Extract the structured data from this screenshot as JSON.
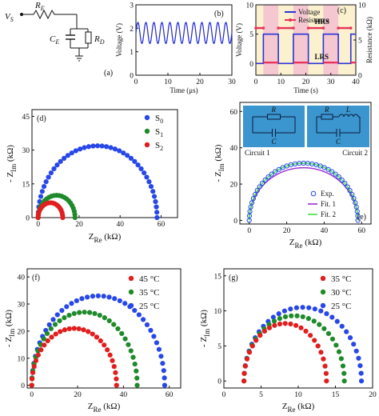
{
  "chart_data": [
    {
      "id": "a",
      "type": "circuit",
      "panel_label": "(a)",
      "labels": {
        "source": "V",
        "source_sub": "S",
        "re": "R",
        "re_sub": "E",
        "ce": "C",
        "ce_sub": "E",
        "rd": "R",
        "rd_sub": "D"
      }
    },
    {
      "id": "b",
      "type": "line",
      "panel_label": "(b)",
      "xlabel": "Time (μs)",
      "ylabel": "Voltage (V)",
      "xlim": [
        0,
        30
      ],
      "ylim": [
        0,
        3
      ],
      "xticks": [
        0,
        10,
        20,
        30
      ],
      "yticks": [
        0,
        1,
        2,
        3
      ],
      "series": [
        {
          "color": "#2a34d6",
          "mean": 1.8,
          "amplitude": 0.45,
          "period_us": 2.5
        }
      ]
    },
    {
      "id": "c",
      "type": "line",
      "panel_label": "(c)",
      "xlabel": "Time (s)",
      "ylabel": "Voltage (V)",
      "y2label": "Resistance (kΩ)",
      "xlim": [
        0,
        40
      ],
      "ylim": [
        -2,
        10
      ],
      "y2lim": [
        0,
        10
      ],
      "xticks": [
        0,
        10,
        20,
        30,
        40
      ],
      "yticks": [
        0,
        5,
        10
      ],
      "y2ticks": [
        0,
        5,
        10
      ],
      "annotations": [
        "HRS",
        "LRS"
      ],
      "shaded_spans": [
        [
          3,
          9
        ],
        [
          15,
          21
        ],
        [
          27,
          33
        ]
      ],
      "series": [
        {
          "name": "Voltage",
          "color": "#2a34d6",
          "x": [
            0,
            3,
            3,
            9,
            9,
            15,
            15,
            21,
            21,
            27,
            27,
            33,
            33,
            38,
            38,
            40
          ],
          "y": [
            0,
            0,
            5,
            5,
            0,
            0,
            5,
            5,
            0,
            0,
            5,
            5,
            0,
            0,
            5,
            5
          ]
        },
        {
          "name": "Resistance",
          "color": "#e8335a",
          "hrs_kohm": 6.7,
          "lrs_kohm": 1.8
        }
      ]
    },
    {
      "id": "d",
      "type": "scatter",
      "panel_label": "(d)",
      "xlabel": "Z",
      "xlabel_sub": "Re",
      "xlabel_unit": "(kΩ)",
      "ylabel": "- Z",
      "ylabel_sub": "Im",
      "ylabel_unit": "(kΩ)",
      "xlim": [
        -3,
        68
      ],
      "ylim": [
        0,
        48
      ],
      "xticks": [
        0,
        20,
        40,
        60
      ],
      "yticks": [
        0,
        15,
        30,
        45
      ],
      "legend_position": "top-right",
      "series": [
        {
          "name": "S",
          "name_sub": "0",
          "color": "#2747e8",
          "r_kohm": 58,
          "points": 42
        },
        {
          "name": "S",
          "name_sub": "1",
          "color": "#1e8a2a",
          "r_kohm": 18,
          "points": 22
        },
        {
          "name": "S",
          "name_sub": "2",
          "color": "#e11d1d",
          "r_kohm": 12,
          "points": 18
        }
      ]
    },
    {
      "id": "e",
      "type": "scatter",
      "panel_label": "(e)",
      "xlabel": "Z",
      "xlabel_sub": "Re",
      "xlabel_unit": "(kΩ)",
      "ylabel": "- Z",
      "ylabel_sub": "Im",
      "ylabel_unit": "(kΩ)",
      "xlim": [
        -5,
        65
      ],
      "ylim": [
        -2,
        65
      ],
      "xticks": [
        0,
        20,
        40,
        60
      ],
      "yticks": [
        0,
        20,
        40,
        60
      ],
      "legend_position": "bottom-right",
      "insets": [
        {
          "title": "Circuit 1",
          "labels": [
            "R",
            "C"
          ]
        },
        {
          "title": "Circuit 2",
          "labels": [
            "R",
            "L",
            "C"
          ]
        }
      ],
      "series": [
        {
          "name": "Exp.",
          "color": "#2747e8",
          "marker": "open-circle",
          "r_kohm": 58,
          "points": 40
        },
        {
          "name": "Fit. 1",
          "color": "#9b2fd0",
          "r_kohm": 58,
          "peak_kohm": 29
        },
        {
          "name": "Fit. 2",
          "color": "#3fe04a",
          "r_kohm": 58,
          "peak_kohm": 31.5
        }
      ]
    },
    {
      "id": "f",
      "type": "scatter",
      "panel_label": "(f)",
      "xlabel": "Z",
      "xlabel_sub": "Re",
      "xlabel_unit": "(kΩ)",
      "ylabel": "- Z",
      "ylabel_sub": "Im",
      "ylabel_unit": "(kΩ)",
      "xlim": [
        -2,
        65
      ],
      "ylim": [
        -1,
        43
      ],
      "xticks": [
        0,
        20,
        40,
        60
      ],
      "yticks": [
        0,
        10,
        20,
        30,
        40
      ],
      "legend_position": "top-right",
      "series": [
        {
          "name": "45 °C",
          "color": "#e11d1d",
          "r_kohm": 37,
          "peak_kohm": 21,
          "points": 28
        },
        {
          "name": "35 °C",
          "color": "#1e8a2a",
          "r_kohm": 46,
          "peak_kohm": 27,
          "points": 32
        },
        {
          "name": "25 °C",
          "color": "#2747e8",
          "r_kohm": 58,
          "peak_kohm": 33,
          "points": 38
        }
      ]
    },
    {
      "id": "g",
      "type": "scatter",
      "panel_label": "(g)",
      "xlabel": "Z",
      "xlabel_sub": "Re",
      "xlabel_unit": "(kΩ)",
      "ylabel": "- Z",
      "ylabel_sub": "Im",
      "ylabel_unit": "(kΩ)",
      "xlim": [
        0,
        20
      ],
      "ylim": [
        -1,
        16
      ],
      "xticks": [
        0,
        5,
        10,
        15,
        20
      ],
      "yticks": [
        0,
        5,
        10,
        15
      ],
      "legend_position": "top-right",
      "series": [
        {
          "name": "35 °C",
          "color": "#e11d1d",
          "x0_kohm": 2.7,
          "r_kohm": 13.8,
          "peak_kohm": 8.2,
          "points": 24
        },
        {
          "name": "30 °C",
          "color": "#1e8a2a",
          "x0_kohm": 2.7,
          "r_kohm": 16.2,
          "peak_kohm": 9.3,
          "points": 27
        },
        {
          "name": "25 °C",
          "color": "#2747e8",
          "x0_kohm": 2.7,
          "r_kohm": 18.5,
          "peak_kohm": 10.5,
          "points": 30
        }
      ]
    }
  ]
}
